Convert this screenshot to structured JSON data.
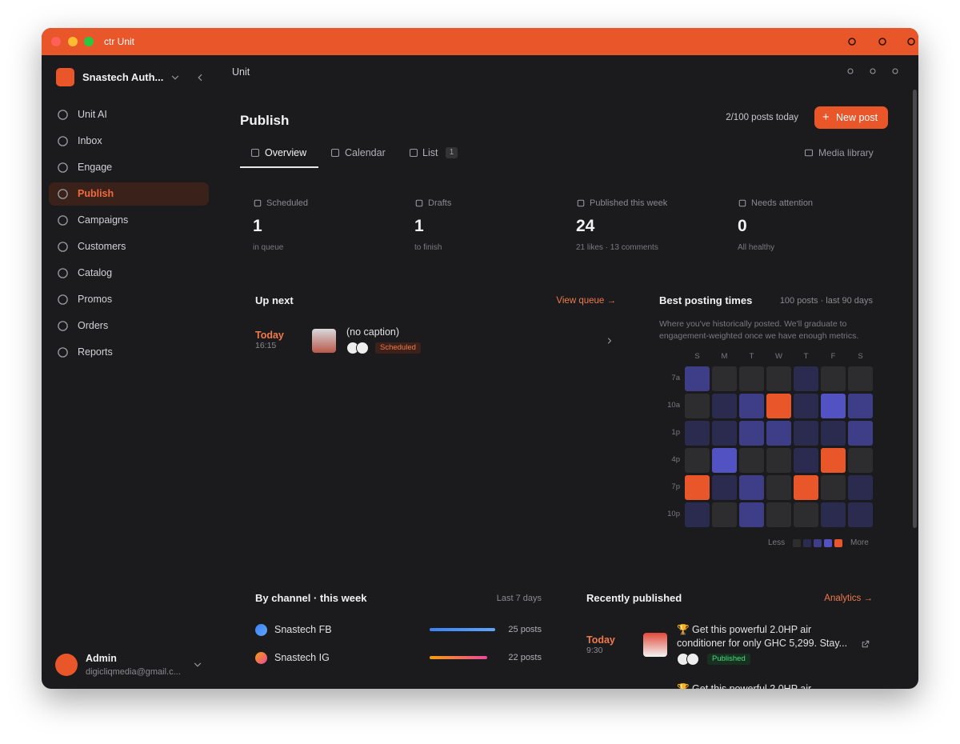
{
  "window": {
    "title": "ctr Unit"
  },
  "sidebar": {
    "workspace": "Snastech Auth...",
    "nav": [
      {
        "label": "Unit AI"
      },
      {
        "label": "Inbox"
      },
      {
        "label": "Engage"
      },
      {
        "label": "Publish",
        "active": true
      },
      {
        "label": "Campaigns"
      },
      {
        "label": "Customers"
      },
      {
        "label": "Catalog"
      },
      {
        "label": "Promos"
      },
      {
        "label": "Orders"
      },
      {
        "label": "Reports"
      }
    ],
    "user": {
      "name": "Admin",
      "email": "digicliqmedia@gmail.c..."
    }
  },
  "header": {
    "breadcrumb": "Unit"
  },
  "page": {
    "title": "Publish",
    "quota": "2/100 posts today",
    "new_post": "New post",
    "tabs": [
      {
        "label": "Overview",
        "active": true
      },
      {
        "label": "Calendar"
      },
      {
        "label": "List",
        "badge": "1"
      }
    ],
    "media_library": "Media library"
  },
  "stats": [
    {
      "label": "Scheduled",
      "value": "1",
      "note": "in queue"
    },
    {
      "label": "Drafts",
      "value": "1",
      "note": "to finish"
    },
    {
      "label": "Published this week",
      "value": "24",
      "note": "21 likes · 13 comments"
    },
    {
      "label": "Needs attention",
      "value": "0",
      "note": "All healthy"
    }
  ],
  "up_next": {
    "title": "Up next",
    "link": "View queue →",
    "items": [
      {
        "day": "Today",
        "time": "16:15",
        "caption": "(no caption)",
        "status": "Scheduled"
      }
    ]
  },
  "best_times": {
    "title": "Best posting times",
    "meta": "100 posts · last 90 days",
    "description": "Where you've historically posted. We'll graduate to engagement-weighted once we have enough metrics.",
    "days": [
      "S",
      "M",
      "T",
      "W",
      "T",
      "F",
      "S"
    ],
    "hours": [
      "7a",
      "10a",
      "1p",
      "4p",
      "7p",
      "10p"
    ],
    "levels": [
      [
        2,
        0,
        0,
        0,
        1,
        0,
        0
      ],
      [
        0,
        1,
        2,
        4,
        1,
        3,
        2
      ],
      [
        1,
        1,
        2,
        2,
        1,
        1,
        2
      ],
      [
        0,
        3,
        0,
        0,
        1,
        4,
        0
      ],
      [
        4,
        1,
        2,
        0,
        4,
        0,
        1
      ],
      [
        1,
        0,
        2,
        0,
        0,
        1,
        1
      ]
    ],
    "colors": [
      "#2d2d30",
      "#2b2b4f",
      "#3d3d88",
      "#5252c2",
      "#e8562a"
    ],
    "legend_less": "Less",
    "legend_more": "More"
  },
  "by_channel": {
    "title": "By channel · this week",
    "range": "Last 7 days",
    "channels": [
      {
        "name": "Snastech FB",
        "posts": 25,
        "posts_label": "25 posts",
        "colors": [
          "#3b82f6",
          "#60a5fa"
        ]
      },
      {
        "name": "Snastech IG",
        "posts": 22,
        "posts_label": "22 posts",
        "colors": [
          "#f59e0b",
          "#ec4899"
        ]
      }
    ]
  },
  "recently": {
    "title": "Recently published",
    "link": "Analytics →",
    "items": [
      {
        "day": "Today",
        "time": "9:30",
        "text": "🏆 Get this powerful 2.0HP air conditioner for only GHC 5,299. Stay...",
        "status": "Published"
      },
      {
        "text": "🏆 Get this powerful 2.0HP air"
      }
    ]
  }
}
